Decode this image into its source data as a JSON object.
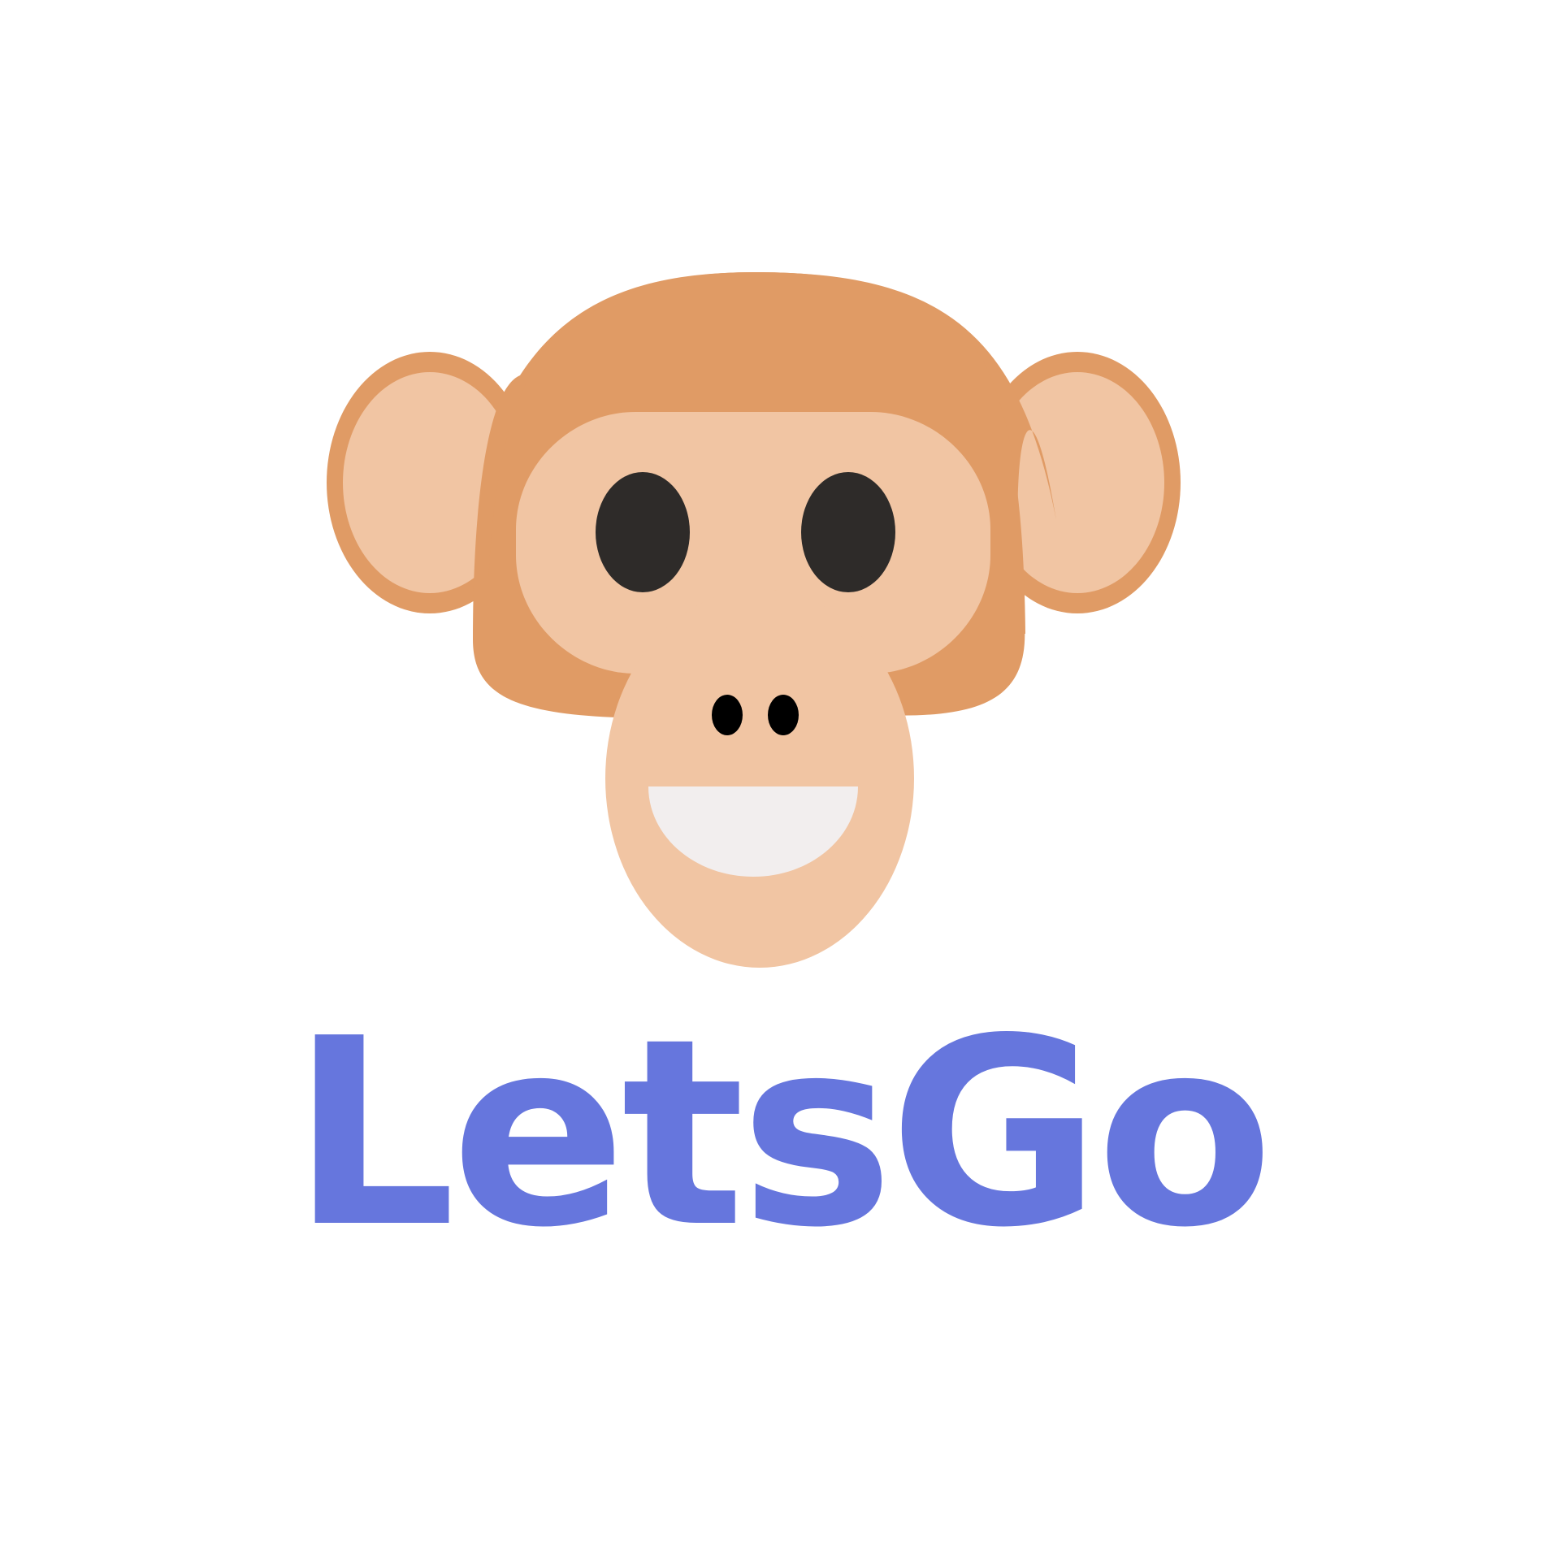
{
  "brand": {
    "name": "LetsGo",
    "text_color": "#6676dd"
  },
  "mascot": {
    "icon": "monkey-face-icon",
    "colors": {
      "fur": "#e09b65",
      "skin": "#f1c5a3",
      "eyes": "#2e2b29",
      "nostrils": "#000000",
      "mouth": "#f2eeee",
      "background": "#ffffff"
    }
  }
}
